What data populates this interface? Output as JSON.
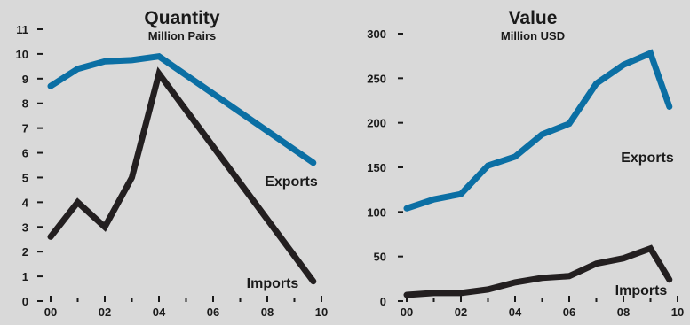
{
  "colors": {
    "background": "#d9d9d9",
    "exports": "#0b6fa4",
    "imports": "#231f20",
    "axis": "#1a1a1a"
  },
  "chart_data": [
    {
      "type": "line",
      "title": "Quantity",
      "subtitle": "Million Pairs",
      "x": [
        0,
        1,
        2,
        3,
        4,
        9.7
      ],
      "x_ticks": [
        "00",
        "02",
        "04",
        "06",
        "08",
        "10"
      ],
      "x_tick_values": [
        0,
        2,
        4,
        6,
        8,
        10
      ],
      "xlim": [
        0,
        10
      ],
      "ylim": [
        0,
        11
      ],
      "y_ticks": [
        0,
        1,
        2,
        3,
        4,
        5,
        6,
        7,
        8,
        9,
        10,
        11
      ],
      "y_tick_labels": [
        "0",
        "1",
        "2",
        "3",
        "4",
        "5",
        "6",
        "7",
        "8",
        "9",
        "10",
        "11"
      ],
      "grid": false,
      "series": [
        {
          "name": "Exports",
          "x": [
            0,
            1,
            2,
            3,
            4,
            9.7
          ],
          "values": [
            8.7,
            9.4,
            9.7,
            9.75,
            9.9,
            5.6
          ]
        },
        {
          "name": "Imports",
          "x": [
            0,
            1,
            2,
            3,
            4,
            9.7
          ],
          "values": [
            2.6,
            4.0,
            3.0,
            5.0,
            9.2,
            0.8
          ]
        }
      ]
    },
    {
      "type": "line",
      "title": "Value",
      "subtitle": "Million USD",
      "x": [
        0,
        1,
        2,
        3,
        4,
        5,
        6,
        7,
        8,
        9,
        9.7
      ],
      "x_ticks": [
        "00",
        "02",
        "04",
        "06",
        "08",
        "10"
      ],
      "x_tick_values": [
        0,
        2,
        4,
        6,
        8,
        10
      ],
      "xlim": [
        0,
        10
      ],
      "ylim": [
        0,
        300
      ],
      "y_ticks": [
        0,
        50,
        100,
        150,
        200,
        250,
        300
      ],
      "y_tick_labels": [
        "0",
        "50",
        "100",
        "150",
        "200",
        "250",
        "300"
      ],
      "grid": false,
      "series": [
        {
          "name": "Exports",
          "x": [
            0,
            1,
            2,
            3,
            4,
            5,
            6,
            7,
            8,
            9,
            9.7
          ],
          "values": [
            104,
            114,
            120,
            152,
            162,
            187,
            199,
            244,
            265,
            278,
            218
          ]
        },
        {
          "name": "Imports",
          "x": [
            0,
            1,
            2,
            3,
            4,
            5,
            6,
            7,
            8,
            9,
            9.7
          ],
          "values": [
            7,
            9,
            9,
            13,
            21,
            26,
            28,
            42,
            48,
            59,
            24
          ]
        }
      ]
    }
  ]
}
